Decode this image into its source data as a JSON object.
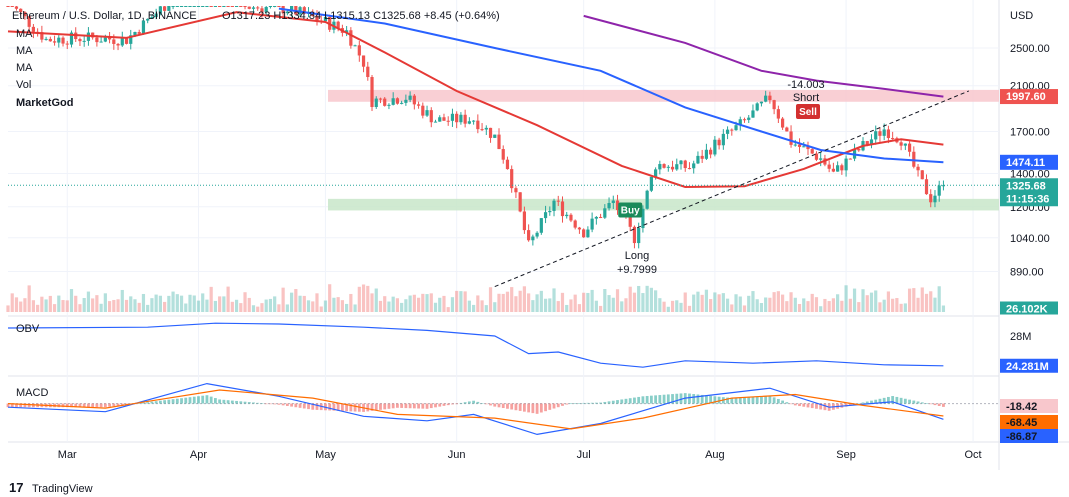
{
  "header": {
    "symbol": "Ethereum / U.S. Dollar, 1D, BINANCE",
    "ohlc": "O1317.23 H1334.84 L1315.13 C1325.68 +8.45 (+0.64%)",
    "indicators": [
      "MA",
      "MA",
      "MA",
      "Vol",
      "MarketGod"
    ],
    "currency": "USD"
  },
  "annotations": {
    "short_value": "-14.003",
    "short_label": "Short",
    "sell_label": "Sell",
    "long_label": "Long",
    "long_value": "+9.7999",
    "buy_label": "Buy"
  },
  "footer": {
    "brand": "TradingView"
  },
  "colors": {
    "up": "#26a69a",
    "down": "#ef5350",
    "ma_fast": "#e53935",
    "ma_mid": "#2962ff",
    "ma_slow": "#8e24aa",
    "resistance_zone": "#f8c7cc",
    "support_zone": "#c8e6c9",
    "obv": "#2962ff",
    "macd": "#2962ff",
    "signal": "#ff6d00"
  },
  "chart_data": [
    {
      "type": "candlestick",
      "title": "Ethereum / U.S. Dollar, 1D, BINANCE",
      "x_ticks": [
        "Mar",
        "Apr",
        "May",
        "Jun",
        "Jul",
        "Aug",
        "Sep",
        "Oct"
      ],
      "y_ticks": [
        890,
        1040,
        1200,
        1400,
        1700,
        2100,
        2500
      ],
      "y_tick_labels": [
        "890.00",
        "1040.00",
        "1200.00",
        "1400.00",
        "1700.00",
        "2100.00",
        "2500.00"
      ],
      "ylim": [
        780,
        3050
      ],
      "y_scale": "log",
      "last_price": "1325.68",
      "countdown": "11:15:36",
      "price_labels": [
        {
          "value": "1997.60",
          "color": "#ef5350"
        },
        {
          "value": "1474.11",
          "color": "#2962ff"
        }
      ],
      "volume_label": "26.102K",
      "zones": [
        {
          "name": "resistance",
          "from": 1950,
          "to": 2060
        },
        {
          "name": "support",
          "from": 1180,
          "to": 1245
        }
      ],
      "price_path": [
        {
          "date": "2022-02-15",
          "close": 3100
        },
        {
          "date": "2022-02-24",
          "close": 2600
        },
        {
          "date": "2022-03-05",
          "close": 2620
        },
        {
          "date": "2022-03-15",
          "close": 2600
        },
        {
          "date": "2022-03-25",
          "close": 3100
        },
        {
          "date": "2022-04-03",
          "close": 3500
        },
        {
          "date": "2022-04-12",
          "close": 3030
        },
        {
          "date": "2022-04-22",
          "close": 3000
        },
        {
          "date": "2022-05-01",
          "close": 2820
        },
        {
          "date": "2022-05-06",
          "close": 2700
        },
        {
          "date": "2022-05-10",
          "close": 2340
        },
        {
          "date": "2022-05-12",
          "close": 1960
        },
        {
          "date": "2022-05-20",
          "close": 1990
        },
        {
          "date": "2022-05-27",
          "close": 1790
        },
        {
          "date": "2022-06-05",
          "close": 1800
        },
        {
          "date": "2022-06-10",
          "close": 1660
        },
        {
          "date": "2022-06-13",
          "close": 1450
        },
        {
          "date": "2022-06-18",
          "close": 1000
        },
        {
          "date": "2022-06-24",
          "close": 1230
        },
        {
          "date": "2022-07-01",
          "close": 1070
        },
        {
          "date": "2022-07-08",
          "close": 1230
        },
        {
          "date": "2022-07-13",
          "close": 1040
        },
        {
          "date": "2022-07-18",
          "close": 1460
        },
        {
          "date": "2022-07-26",
          "close": 1440
        },
        {
          "date": "2022-08-02",
          "close": 1630
        },
        {
          "date": "2022-08-08",
          "close": 1780
        },
        {
          "date": "2022-08-14",
          "close": 1990
        },
        {
          "date": "2022-08-19",
          "close": 1620
        },
        {
          "date": "2022-08-26",
          "close": 1500
        },
        {
          "date": "2022-08-29",
          "close": 1400
        },
        {
          "date": "2022-09-05",
          "close": 1590
        },
        {
          "date": "2022-09-10",
          "close": 1720
        },
        {
          "date": "2022-09-14",
          "close": 1640
        },
        {
          "date": "2022-09-18",
          "close": 1380
        },
        {
          "date": "2022-09-21",
          "close": 1250
        },
        {
          "date": "2022-09-24",
          "close": 1325.68
        }
      ],
      "moving_averages": [
        {
          "name": "MA",
          "color": "#e53935",
          "points": [
            {
              "date": "2022-02-15",
              "value": 2700
            },
            {
              "date": "2022-03-15",
              "value": 2620
            },
            {
              "date": "2022-04-10",
              "value": 2950
            },
            {
              "date": "2022-05-01",
              "value": 2820
            },
            {
              "date": "2022-05-15",
              "value": 2450
            },
            {
              "date": "2022-06-01",
              "value": 2050
            },
            {
              "date": "2022-06-20",
              "value": 1750
            },
            {
              "date": "2022-07-10",
              "value": 1450
            },
            {
              "date": "2022-07-25",
              "value": 1315
            },
            {
              "date": "2022-08-08",
              "value": 1320
            },
            {
              "date": "2022-08-22",
              "value": 1430
            },
            {
              "date": "2022-09-05",
              "value": 1590
            },
            {
              "date": "2022-09-14",
              "value": 1640
            },
            {
              "date": "2022-09-24",
              "value": 1600
            }
          ]
        },
        {
          "name": "MA",
          "color": "#2962ff",
          "points": [
            {
              "date": "2022-04-20",
              "value": 3000
            },
            {
              "date": "2022-05-15",
              "value": 2800
            },
            {
              "date": "2022-06-10",
              "value": 2500
            },
            {
              "date": "2022-07-05",
              "value": 2250
            },
            {
              "date": "2022-07-25",
              "value": 1900
            },
            {
              "date": "2022-08-12",
              "value": 1700
            },
            {
              "date": "2022-08-26",
              "value": 1560
            },
            {
              "date": "2022-09-10",
              "value": 1500
            },
            {
              "date": "2022-09-24",
              "value": 1474.11
            }
          ]
        },
        {
          "name": "MA",
          "color": "#8e24aa",
          "points": [
            {
              "date": "2022-07-01",
              "value": 2900
            },
            {
              "date": "2022-07-25",
              "value": 2560
            },
            {
              "date": "2022-08-12",
              "value": 2250
            },
            {
              "date": "2022-08-25",
              "value": 2150
            },
            {
              "date": "2022-09-10",
              "value": 2070
            },
            {
              "date": "2022-09-24",
              "value": 1997.6
            }
          ]
        }
      ],
      "trendline": [
        {
          "date": "2022-06-10",
          "value": 830
        },
        {
          "date": "2022-09-30",
          "value": 2050
        }
      ],
      "signals": [
        {
          "type": "buy",
          "date": "2022-07-12",
          "value": 1180
        },
        {
          "type": "sell",
          "date": "2022-08-23",
          "value": 1860
        }
      ]
    },
    {
      "type": "line",
      "title": "OBV",
      "y_ticks": [
        "28M"
      ],
      "last_value": "24.281M",
      "points": [
        {
          "date": "2022-02-15",
          "value": 29.0
        },
        {
          "date": "2022-03-20",
          "value": 29.1
        },
        {
          "date": "2022-04-05",
          "value": 29.6
        },
        {
          "date": "2022-04-20",
          "value": 29.5
        },
        {
          "date": "2022-05-10",
          "value": 29.1
        },
        {
          "date": "2022-05-25",
          "value": 28.7
        },
        {
          "date": "2022-06-10",
          "value": 28.0
        },
        {
          "date": "2022-06-18",
          "value": 25.8
        },
        {
          "date": "2022-06-25",
          "value": 26.0
        },
        {
          "date": "2022-07-05",
          "value": 24.6
        },
        {
          "date": "2022-07-15",
          "value": 24.1
        },
        {
          "date": "2022-07-25",
          "value": 24.9
        },
        {
          "date": "2022-08-10",
          "value": 24.6
        },
        {
          "date": "2022-08-25",
          "value": 24.9
        },
        {
          "date": "2022-09-10",
          "value": 24.4
        },
        {
          "date": "2022-09-24",
          "value": 24.281
        }
      ]
    },
    {
      "type": "histogram",
      "title": "MACD",
      "values_shown": [
        "-18.42",
        "-68.45",
        "-86.87"
      ],
      "macd": [
        {
          "date": "2022-02-15",
          "value": -20
        },
        {
          "date": "2022-03-10",
          "value": -45
        },
        {
          "date": "2022-04-03",
          "value": 110
        },
        {
          "date": "2022-04-20",
          "value": 40
        },
        {
          "date": "2022-05-10",
          "value": -70
        },
        {
          "date": "2022-05-25",
          "value": -95
        },
        {
          "date": "2022-06-05",
          "value": -60
        },
        {
          "date": "2022-06-20",
          "value": -170
        },
        {
          "date": "2022-07-05",
          "value": -110
        },
        {
          "date": "2022-07-25",
          "value": 30
        },
        {
          "date": "2022-08-14",
          "value": 85
        },
        {
          "date": "2022-08-28",
          "value": -20
        },
        {
          "date": "2022-09-12",
          "value": 10
        },
        {
          "date": "2022-09-24",
          "value": -86.87
        }
      ],
      "signal": [
        {
          "date": "2022-02-15",
          "value": 0
        },
        {
          "date": "2022-03-10",
          "value": -25
        },
        {
          "date": "2022-04-06",
          "value": 75
        },
        {
          "date": "2022-04-28",
          "value": 30
        },
        {
          "date": "2022-05-18",
          "value": -60
        },
        {
          "date": "2022-06-10",
          "value": -80
        },
        {
          "date": "2022-06-28",
          "value": -140
        },
        {
          "date": "2022-07-15",
          "value": -80
        },
        {
          "date": "2022-08-05",
          "value": 30
        },
        {
          "date": "2022-08-20",
          "value": 50
        },
        {
          "date": "2022-09-05",
          "value": -10
        },
        {
          "date": "2022-09-24",
          "value": -68.45
        }
      ]
    }
  ]
}
